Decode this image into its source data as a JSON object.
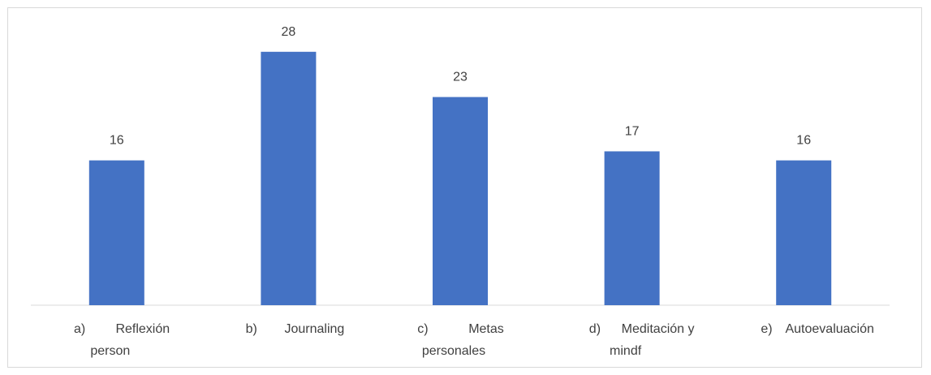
{
  "chart_data": {
    "type": "bar",
    "categories": [
      {
        "marker": "a)",
        "lines": [
          "Reflexión",
          "person"
        ]
      },
      {
        "marker": "b)",
        "lines": [
          "Journaling"
        ]
      },
      {
        "marker": "c)",
        "lines": [
          "Metas",
          "personales"
        ]
      },
      {
        "marker": "d)",
        "lines": [
          "Meditación y",
          "mindf"
        ]
      },
      {
        "marker": "e)",
        "lines": [
          "Autoevaluación"
        ]
      }
    ],
    "values": [
      16,
      28,
      23,
      17,
      16
    ],
    "ylim": [
      0,
      30
    ],
    "bar_color": "#4472C4",
    "axis_color": "#d9d9d9",
    "label_color": "#404040",
    "grid": false,
    "legend": "none"
  }
}
